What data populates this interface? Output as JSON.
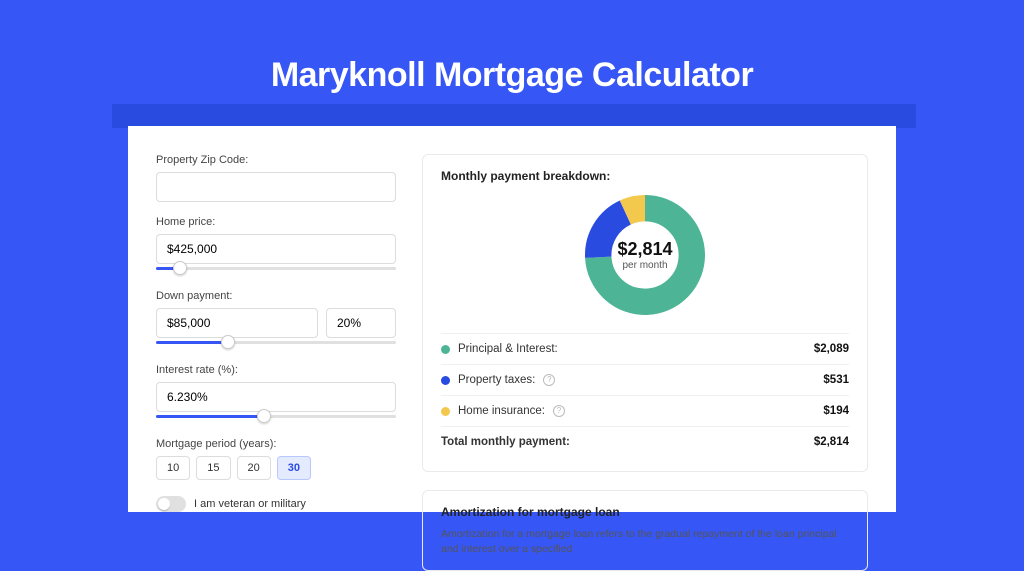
{
  "page": {
    "title": "Maryknoll Mortgage Calculator",
    "bg_color": "#3656f5",
    "shadow_color": "#2a4be0",
    "card_bg": "#ffffff"
  },
  "form": {
    "zip": {
      "label": "Property Zip Code:",
      "value": ""
    },
    "home_price": {
      "label": "Home price:",
      "value": "$425,000",
      "slider_pct": 10
    },
    "down_payment": {
      "label": "Down payment:",
      "amount": "$85,000",
      "percent": "20%",
      "slider_pct": 30
    },
    "interest": {
      "label": "Interest rate (%):",
      "value": "6.230%",
      "slider_pct": 45
    },
    "period": {
      "label": "Mortgage period (years):",
      "options": [
        "10",
        "15",
        "20",
        "30"
      ],
      "selected_index": 3
    },
    "veteran": {
      "label": "I am veteran or military",
      "on": false
    }
  },
  "breakdown": {
    "title": "Monthly payment breakdown:",
    "center_amount": "$2,814",
    "center_sub": "per month",
    "donut": {
      "type": "donut",
      "slices": [
        {
          "label": "principal_interest",
          "value": 2089,
          "color": "#4db596"
        },
        {
          "label": "property_taxes",
          "value": 531,
          "color": "#2a4be0"
        },
        {
          "label": "home_insurance",
          "value": 194,
          "color": "#f2c94c"
        }
      ],
      "ring_thickness_pct": 22,
      "bg_color": "#ffffff"
    },
    "rows": [
      {
        "dot": "#4db596",
        "label": "Principal & Interest:",
        "info": false,
        "value": "$2,089"
      },
      {
        "dot": "#2a4be0",
        "label": "Property taxes:",
        "info": true,
        "value": "$531"
      },
      {
        "dot": "#f2c94c",
        "label": "Home insurance:",
        "info": true,
        "value": "$194"
      }
    ],
    "total": {
      "label": "Total monthly payment:",
      "value": "$2,814"
    }
  },
  "amortization": {
    "title": "Amortization for mortgage loan",
    "body": "Amortization for a mortgage loan refers to the gradual repayment of the loan principal and interest over a specified"
  }
}
